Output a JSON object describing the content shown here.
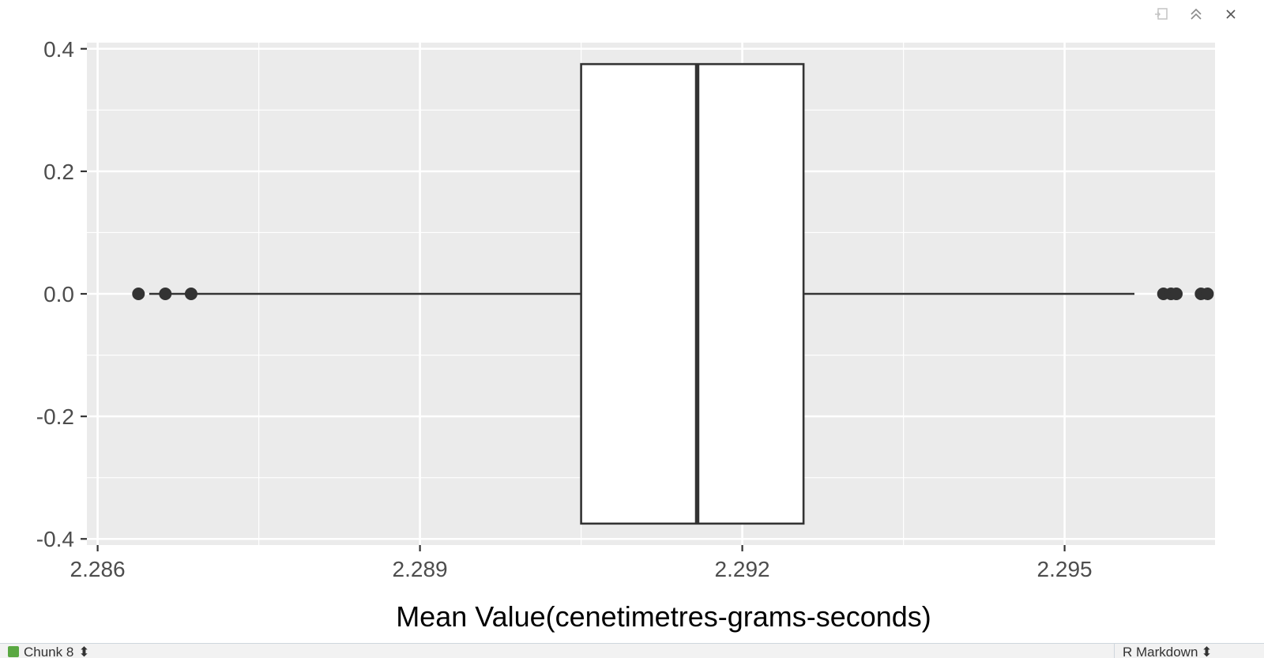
{
  "pane_toolbar": {
    "icons": [
      "popout-icon",
      "maximize-icon",
      "close-icon"
    ]
  },
  "chart_data": {
    "type": "boxplot",
    "orientation": "horizontal",
    "xlabel": "Mean Value(cenetimetres-grams-seconds)",
    "ylabel": "",
    "xlim": [
      2.2859,
      2.2964
    ],
    "ylim": [
      -0.41,
      0.41
    ],
    "x_ticks": [
      2.286,
      2.289,
      2.292,
      2.295
    ],
    "x_tick_labels": [
      "2.286",
      "2.289",
      "2.292",
      "2.295"
    ],
    "y_ticks": [
      0.4,
      0.2,
      0.0,
      -0.2,
      -0.4
    ],
    "y_tick_labels": [
      "0.4",
      "0.2",
      "0.0",
      "-0.2",
      "-0.4"
    ],
    "grid": true,
    "panel_background": "#ebebeb",
    "box": {
      "whisker_low": 2.28648,
      "q1": 2.2905,
      "median": 2.29158,
      "q3": 2.29257,
      "whisker_high": 2.29565,
      "y_center": 0.0,
      "half_width": 0.375,
      "fill": "#ffffff",
      "stroke": "#333333"
    },
    "outliers": [
      2.28638,
      2.28638,
      2.28663,
      2.28688,
      2.29592,
      2.29596,
      2.296,
      2.29603,
      2.29627,
      2.2963,
      2.29633
    ],
    "outliers_visible": [
      2.28638,
      2.28663,
      2.28687,
      2.29592,
      2.29599,
      2.29604,
      2.29627,
      2.29633
    ]
  },
  "status_bar": {
    "chunk_label": "Chunk 8",
    "chunk_arrow": "⬍",
    "doc_type": "R Markdown",
    "doc_arrow": "⬍"
  }
}
